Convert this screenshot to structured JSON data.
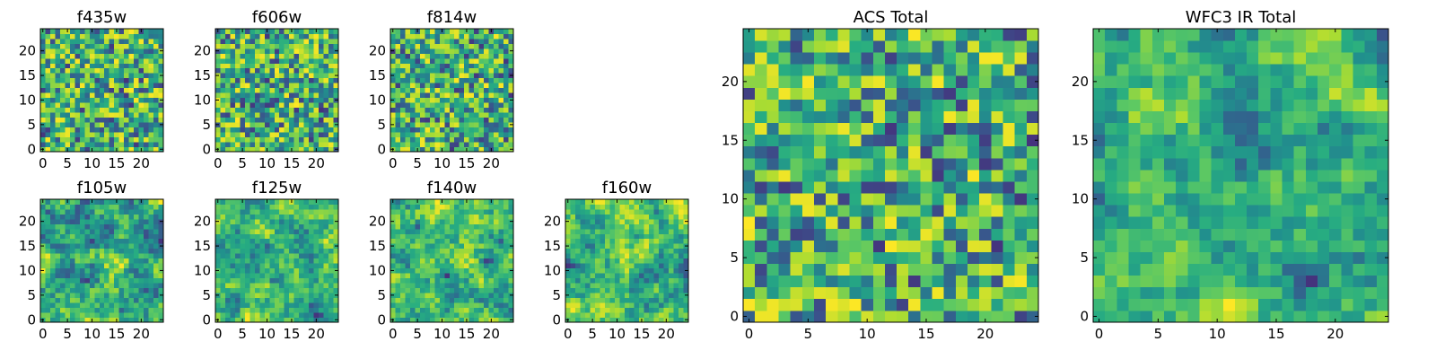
{
  "chart_data": [
    {
      "type": "heatmap",
      "title": "f435w",
      "xlim": [
        -0.5,
        24.5
      ],
      "ylim": [
        -0.5,
        24.5
      ],
      "xticks": [
        0,
        5,
        10,
        15,
        20
      ],
      "yticks": [
        0,
        5,
        10,
        15,
        20
      ],
      "colormap": "viridis",
      "grid_size": [
        25,
        25
      ],
      "texture": "fine"
    },
    {
      "type": "heatmap",
      "title": "f606w",
      "xlim": [
        -0.5,
        24.5
      ],
      "ylim": [
        -0.5,
        24.5
      ],
      "xticks": [
        0,
        5,
        10,
        15,
        20
      ],
      "yticks": [
        0,
        5,
        10,
        15,
        20
      ],
      "colormap": "viridis",
      "grid_size": [
        25,
        25
      ],
      "texture": "fine"
    },
    {
      "type": "heatmap",
      "title": "f814w",
      "xlim": [
        -0.5,
        24.5
      ],
      "ylim": [
        -0.5,
        24.5
      ],
      "xticks": [
        0,
        5,
        10,
        15,
        20
      ],
      "yticks": [
        0,
        5,
        10,
        15,
        20
      ],
      "colormap": "viridis",
      "grid_size": [
        25,
        25
      ],
      "texture": "fine"
    },
    {
      "type": "heatmap",
      "title": "f105w",
      "xlim": [
        -0.5,
        24.5
      ],
      "ylim": [
        -0.5,
        24.5
      ],
      "xticks": [
        0,
        5,
        10,
        15,
        20
      ],
      "yticks": [
        0,
        5,
        10,
        15,
        20
      ],
      "colormap": "viridis",
      "grid_size": [
        25,
        25
      ],
      "texture": "smooth"
    },
    {
      "type": "heatmap",
      "title": "f125w",
      "xlim": [
        -0.5,
        24.5
      ],
      "ylim": [
        -0.5,
        24.5
      ],
      "xticks": [
        0,
        5,
        10,
        15,
        20
      ],
      "yticks": [
        0,
        5,
        10,
        15,
        20
      ],
      "colormap": "viridis",
      "grid_size": [
        25,
        25
      ],
      "texture": "smooth"
    },
    {
      "type": "heatmap",
      "title": "f140w",
      "xlim": [
        -0.5,
        24.5
      ],
      "ylim": [
        -0.5,
        24.5
      ],
      "xticks": [
        0,
        5,
        10,
        15,
        20
      ],
      "yticks": [
        0,
        5,
        10,
        15,
        20
      ],
      "colormap": "viridis",
      "grid_size": [
        25,
        25
      ],
      "texture": "smooth"
    },
    {
      "type": "heatmap",
      "title": "f160w",
      "xlim": [
        -0.5,
        24.5
      ],
      "ylim": [
        -0.5,
        24.5
      ],
      "xticks": [
        0,
        5,
        10,
        15,
        20
      ],
      "yticks": [
        0,
        5,
        10,
        15,
        20
      ],
      "colormap": "viridis",
      "grid_size": [
        25,
        25
      ],
      "texture": "smooth"
    },
    {
      "type": "heatmap",
      "title": "ACS Total",
      "xlim": [
        -0.5,
        24.5
      ],
      "ylim": [
        -0.5,
        24.5
      ],
      "xticks": [
        0,
        5,
        10,
        15,
        20
      ],
      "yticks": [
        0,
        5,
        10,
        15,
        20
      ],
      "colormap": "viridis",
      "grid_size": [
        25,
        25
      ],
      "texture": "fine"
    },
    {
      "type": "heatmap",
      "title": "WFC3 IR Total",
      "xlim": [
        -0.5,
        24.5
      ],
      "ylim": [
        -0.5,
        24.5
      ],
      "xticks": [
        0,
        5,
        10,
        15,
        20
      ],
      "yticks": [
        0,
        5,
        10,
        15,
        20
      ],
      "colormap": "viridis",
      "grid_size": [
        25,
        25
      ],
      "texture": "smooth"
    }
  ],
  "colors": {
    "viridis": [
      "#440154",
      "#472c7a",
      "#3b518b",
      "#2c718e",
      "#21908d",
      "#27ad81",
      "#5cc863",
      "#aadc32",
      "#fde725"
    ]
  }
}
